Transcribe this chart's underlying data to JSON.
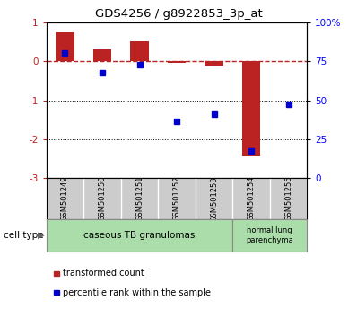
{
  "title": "GDS4256 / g8922853_3p_at",
  "samples": [
    "GSM501249",
    "GSM501250",
    "GSM501251",
    "GSM501252",
    "GSM501253",
    "GSM501254",
    "GSM501255"
  ],
  "red_bars": [
    0.75,
    0.3,
    0.5,
    -0.05,
    -0.12,
    -2.45,
    0.01
  ],
  "blue_dots": [
    0.2,
    -0.3,
    -0.1,
    -1.55,
    -1.35,
    -2.3,
    -1.1
  ],
  "ylim_left": [
    -3,
    1
  ],
  "ylim_right": [
    0,
    100
  ],
  "yticks_left": [
    1,
    0,
    -1,
    -2,
    -3
  ],
  "ytick_left_labels": [
    "1",
    "0",
    "-1",
    "-2",
    "-3"
  ],
  "yticks_right": [
    100,
    75,
    50,
    25,
    0
  ],
  "ytick_right_labels": [
    "100%",
    "75",
    "50",
    "25",
    "0"
  ],
  "group1_label": "caseous TB granulomas",
  "group1_count": 5,
  "group2_label": "normal lung\nparenchyma",
  "group2_count": 2,
  "cell_type_label": "cell type",
  "legend_red": "transformed count",
  "legend_blue": "percentile rank within the sample",
  "bar_color": "#bb2222",
  "dot_color": "#0000cc",
  "group1_color": "#aaddaa",
  "group2_color": "#aaddaa",
  "xlabel_bg": "#cccccc"
}
